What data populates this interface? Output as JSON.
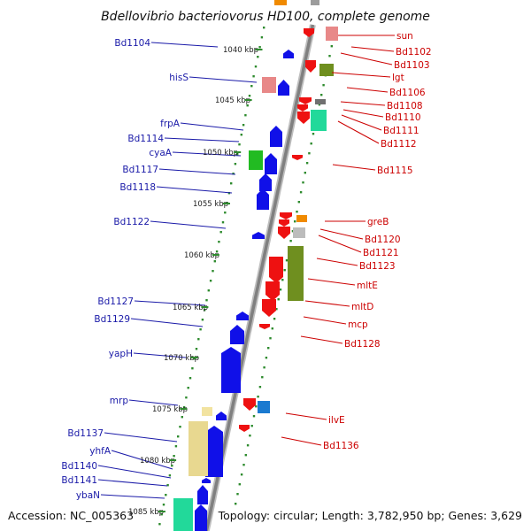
{
  "title": "Bdellovibrio bacteriovorus HD100, complete genome",
  "footer": {
    "accession": "Accession: NC_005363",
    "topology": "Topology: circular; Length: 3,782,950 bp; Genes: 3,629"
  },
  "colors": {
    "left_label": "#1a1aa8",
    "right_label": "#cc0000",
    "forward_gene": "#1010e8",
    "reverse_gene": "#ee1111",
    "tick": "#2e8b2e",
    "backbone": "#808080"
  },
  "kbp_ticks": [
    "1040 kbp",
    "1045 kbp",
    "1050 kbp",
    "1055 kbp",
    "1060 kbp",
    "1065 kbp",
    "1070 kbp",
    "1075 kbp",
    "1080 kbp",
    "1085 kbp"
  ],
  "left_genes": [
    "Bd1104",
    "hisS",
    "frpA",
    "Bd1114",
    "cyaA",
    "Bd1117",
    "Bd1118",
    "Bd1122",
    "Bd1127",
    "Bd1129",
    "yapH",
    "mrp",
    "Bd1137",
    "yhfA",
    "Bd1140",
    "Bd1141",
    "ybaN"
  ],
  "right_genes": [
    "sun",
    "Bd1102",
    "Bd1103",
    "lgt",
    "Bd1106",
    "Bd1108",
    "Bd1110",
    "Bd1111",
    "Bd1112",
    "Bd1115",
    "greB",
    "Bd1120",
    "Bd1121",
    "Bd1123",
    "mltE",
    "mltD",
    "mcp",
    "Bd1128",
    "ilvE",
    "Bd1136"
  ]
}
